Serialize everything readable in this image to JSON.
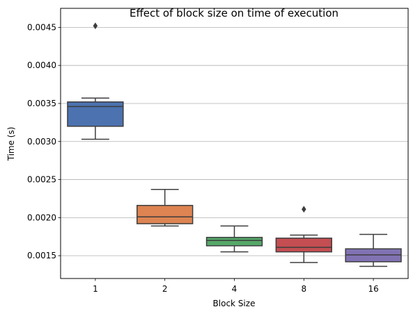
{
  "chart_data": {
    "type": "box",
    "title": "Effect of block size on time of execution",
    "xlabel": "Block Size",
    "ylabel": "Time (s)",
    "categories": [
      "1",
      "2",
      "4",
      "8",
      "16"
    ],
    "ylim": [
      0.0012,
      0.00475
    ],
    "yticks": [
      "0.0015",
      "0.0020",
      "0.0025",
      "0.0030",
      "0.0035",
      "0.0040",
      "0.0045"
    ],
    "grid": "horizontal",
    "boxes": [
      {
        "category": "1",
        "whisker_low": 0.00303,
        "q1": 0.0032,
        "median": 0.00346,
        "q3": 0.00352,
        "whisker_high": 0.00357,
        "outliers": [
          0.00452
        ],
        "color": "#4c72b0"
      },
      {
        "category": "2",
        "whisker_low": 0.00189,
        "q1": 0.00192,
        "median": 0.00201,
        "q3": 0.00216,
        "whisker_high": 0.00237,
        "outliers": [],
        "color": "#dd8452"
      },
      {
        "category": "4",
        "whisker_low": 0.00155,
        "q1": 0.00163,
        "median": 0.0017,
        "q3": 0.00174,
        "whisker_high": 0.00189,
        "outliers": [],
        "color": "#55a868"
      },
      {
        "category": "8",
        "whisker_low": 0.00141,
        "q1": 0.00155,
        "median": 0.00161,
        "q3": 0.00173,
        "whisker_high": 0.00177,
        "outliers": [
          0.00211
        ],
        "color": "#c44e52"
      },
      {
        "category": "16",
        "whisker_low": 0.00136,
        "q1": 0.00142,
        "median": 0.00151,
        "q3": 0.00159,
        "whisker_high": 0.00178,
        "outliers": [],
        "color": "#8172b3"
      }
    ]
  }
}
